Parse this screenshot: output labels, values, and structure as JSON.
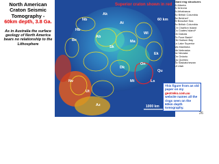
{
  "header": {
    "title": "North American Craton Seismic Tomography -",
    "subtitle": "60km depth, 3.8 Ga.",
    "note": "As in Australia the surface geology of North America bears no relationship to the Lithosphere"
  },
  "map": {
    "caption": "Superior craton shown in red",
    "depth_label": "60 km",
    "scale_label": "1000 km",
    "labels": [
      "Nb",
      "Ak",
      "At",
      "Bc",
      "Ab",
      "Sk",
      "Ma",
      "Hb",
      "Wl",
      "Ek",
      "On",
      "Qu",
      "Dk",
      "Nv",
      "Ut",
      "Az",
      "Mt",
      "Ls"
    ]
  },
  "legend": {
    "title": "Giant ring structures",
    "items": [
      "Al Alberta",
      "Ar Arizona",
      "At Athabasca",
      "Bc British Columbia",
      "Be Belcher*",
      "Bf Beaufort Sea",
      "Bc British Columbia",
      "Ch Charlton Island",
      "Cs Coates Island*",
      "Dk Dakota",
      "Fb Foxe Basin*",
      "Hb Hudson Bay",
      "Ls Lake Superior",
      "Ma Manitoba",
      "Nb Nebraska",
      "Nv Nevada",
      "On Ontario",
      "Qu Quebec",
      "Sk Saskatchewan",
      "Ut Utah"
    ]
  },
  "footer": {
    "note_start": "This figure from an old paper on my",
    "note_link": "geotreks.com.au",
    "note_end": "website names all the rings seen on the 60km depth tomography.",
    "page": "26"
  }
}
